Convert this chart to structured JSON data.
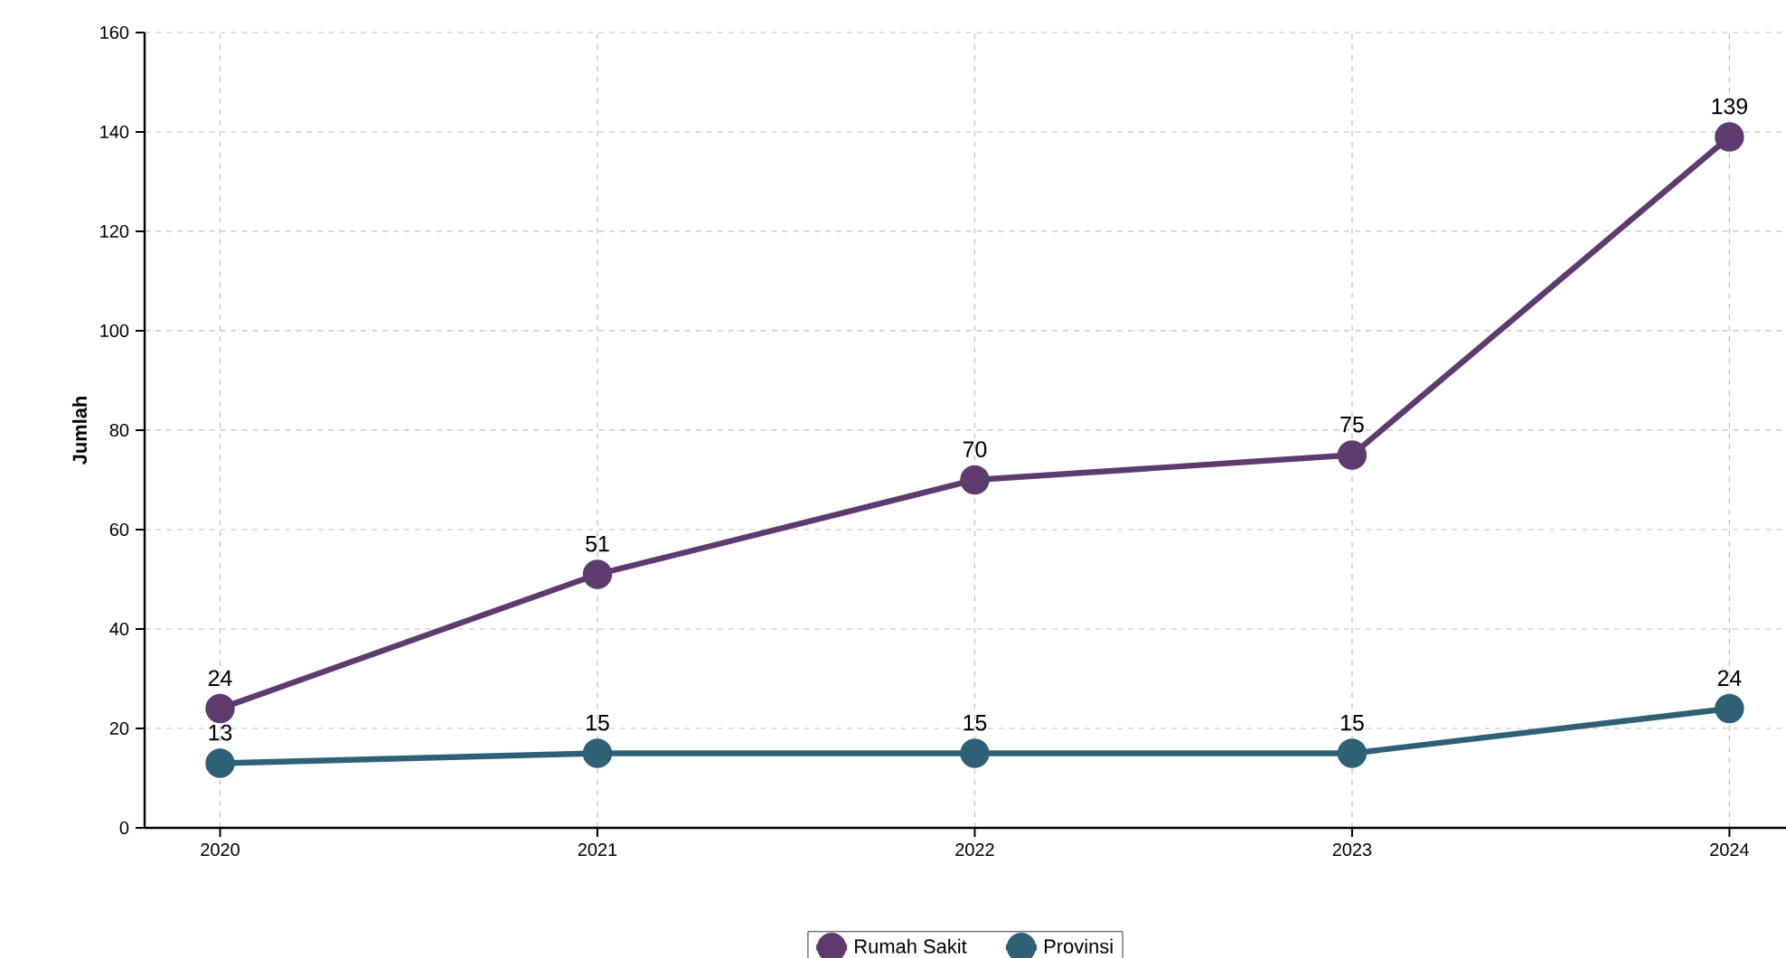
{
  "chart_data": {
    "type": "line",
    "ylabel": "Jumlah",
    "categories": [
      "2020",
      "2021",
      "2022",
      "2023",
      "2024"
    ],
    "series": [
      {
        "name": "Rumah Sakit",
        "color": "#5e3b6e",
        "values": [
          24,
          51,
          70,
          75,
          139
        ]
      },
      {
        "name": "Provinsi",
        "color": "#2f6176",
        "values": [
          13,
          15,
          15,
          15,
          24
        ]
      }
    ],
    "ylim": [
      0,
      160
    ],
    "yticks": [
      0,
      20,
      40,
      60,
      80,
      100,
      120,
      140,
      160
    ],
    "grid": true,
    "legend": "bottom",
    "marker": "circle",
    "line_style": "solid",
    "data_labels": true
  }
}
